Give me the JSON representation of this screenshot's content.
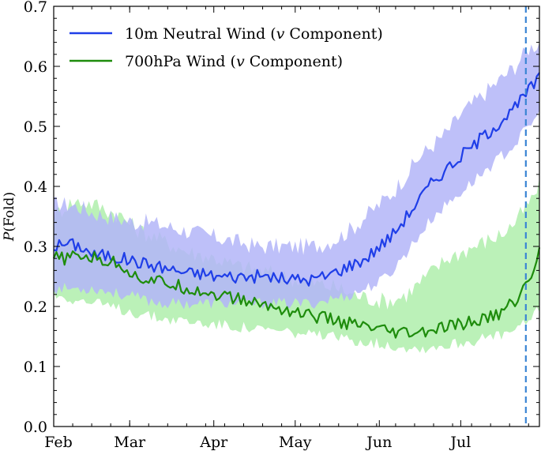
{
  "chart_data": {
    "type": "line",
    "title": "",
    "ylabel_italic": "P",
    "ylabel_rest": "(Fold)",
    "xlabel": "",
    "ylim": [
      0.0,
      0.7
    ],
    "xlim": [
      0,
      179
    ],
    "yticks": [
      {
        "value": 0.0,
        "label": "0.0"
      },
      {
        "value": 0.1,
        "label": "0.1"
      },
      {
        "value": 0.2,
        "label": "0.2"
      },
      {
        "value": 0.3,
        "label": "0.3"
      },
      {
        "value": 0.4,
        "label": "0.4"
      },
      {
        "value": 0.5,
        "label": "0.5"
      },
      {
        "value": 0.6,
        "label": "0.6"
      },
      {
        "value": 0.7,
        "label": "0.7"
      }
    ],
    "xticks": [
      {
        "value": 0,
        "label": "Feb"
      },
      {
        "value": 28,
        "label": "Mar"
      },
      {
        "value": 59,
        "label": "Apr"
      },
      {
        "value": 89,
        "label": "May"
      },
      {
        "value": 120,
        "label": "Jun"
      },
      {
        "value": 150,
        "label": "Jul"
      }
    ],
    "vline": {
      "x": 174,
      "color": "#3a85d4"
    },
    "series": [
      {
        "name_prefix": "10m Neutral Wind (",
        "name_italic": "v",
        "name_suffix": " Component)",
        "color": "#1f3ee8",
        "band_color": "#b3b5f8",
        "x": [
          0,
          5,
          10,
          15,
          20,
          25,
          30,
          35,
          40,
          45,
          50,
          55,
          60,
          65,
          70,
          75,
          80,
          85,
          90,
          95,
          100,
          105,
          110,
          115,
          120,
          125,
          130,
          135,
          140,
          145,
          150,
          155,
          160,
          165,
          170,
          175,
          179
        ],
        "values": [
          0.3,
          0.305,
          0.3,
          0.285,
          0.285,
          0.28,
          0.275,
          0.27,
          0.265,
          0.26,
          0.255,
          0.255,
          0.25,
          0.25,
          0.25,
          0.25,
          0.25,
          0.245,
          0.245,
          0.245,
          0.25,
          0.26,
          0.27,
          0.28,
          0.3,
          0.32,
          0.35,
          0.38,
          0.41,
          0.43,
          0.45,
          0.47,
          0.49,
          0.51,
          0.53,
          0.56,
          0.58
        ],
        "lower": [
          0.23,
          0.23,
          0.23,
          0.23,
          0.225,
          0.22,
          0.215,
          0.21,
          0.205,
          0.205,
          0.205,
          0.205,
          0.205,
          0.205,
          0.205,
          0.205,
          0.205,
          0.205,
          0.205,
          0.205,
          0.21,
          0.215,
          0.22,
          0.23,
          0.24,
          0.26,
          0.29,
          0.32,
          0.35,
          0.37,
          0.39,
          0.41,
          0.43,
          0.45,
          0.47,
          0.5,
          0.52
        ],
        "upper": [
          0.37,
          0.37,
          0.365,
          0.355,
          0.35,
          0.345,
          0.34,
          0.34,
          0.335,
          0.33,
          0.325,
          0.32,
          0.315,
          0.31,
          0.305,
          0.3,
          0.3,
          0.3,
          0.3,
          0.3,
          0.305,
          0.315,
          0.33,
          0.35,
          0.37,
          0.39,
          0.42,
          0.45,
          0.47,
          0.49,
          0.52,
          0.54,
          0.56,
          0.58,
          0.6,
          0.63,
          0.64
        ]
      },
      {
        "name_prefix": "700hPa Wind (",
        "name_italic": "v",
        "name_suffix": " Component)",
        "color": "#1e8c0c",
        "band_color": "#b4f0b0",
        "x": [
          0,
          5,
          10,
          15,
          20,
          25,
          30,
          35,
          40,
          45,
          50,
          55,
          60,
          65,
          70,
          75,
          80,
          85,
          90,
          95,
          100,
          105,
          110,
          115,
          120,
          125,
          130,
          135,
          140,
          145,
          150,
          155,
          160,
          165,
          170,
          175,
          179
        ],
        "values": [
          0.28,
          0.28,
          0.285,
          0.28,
          0.275,
          0.27,
          0.25,
          0.245,
          0.24,
          0.235,
          0.23,
          0.225,
          0.22,
          0.215,
          0.21,
          0.205,
          0.2,
          0.195,
          0.19,
          0.185,
          0.18,
          0.175,
          0.17,
          0.165,
          0.16,
          0.155,
          0.155,
          0.155,
          0.16,
          0.165,
          0.17,
          0.175,
          0.18,
          0.19,
          0.21,
          0.24,
          0.29
        ],
        "lower": [
          0.22,
          0.215,
          0.21,
          0.205,
          0.2,
          0.195,
          0.19,
          0.185,
          0.18,
          0.178,
          0.175,
          0.172,
          0.17,
          0.168,
          0.165,
          0.162,
          0.16,
          0.158,
          0.155,
          0.152,
          0.15,
          0.147,
          0.145,
          0.142,
          0.138,
          0.135,
          0.133,
          0.13,
          0.133,
          0.136,
          0.14,
          0.143,
          0.147,
          0.152,
          0.16,
          0.175,
          0.2
        ],
        "upper": [
          0.35,
          0.37,
          0.375,
          0.37,
          0.36,
          0.35,
          0.33,
          0.32,
          0.31,
          0.3,
          0.29,
          0.285,
          0.28,
          0.27,
          0.265,
          0.26,
          0.255,
          0.25,
          0.245,
          0.24,
          0.235,
          0.23,
          0.22,
          0.215,
          0.21,
          0.21,
          0.22,
          0.24,
          0.26,
          0.28,
          0.29,
          0.3,
          0.31,
          0.32,
          0.34,
          0.37,
          0.4
        ]
      }
    ]
  }
}
